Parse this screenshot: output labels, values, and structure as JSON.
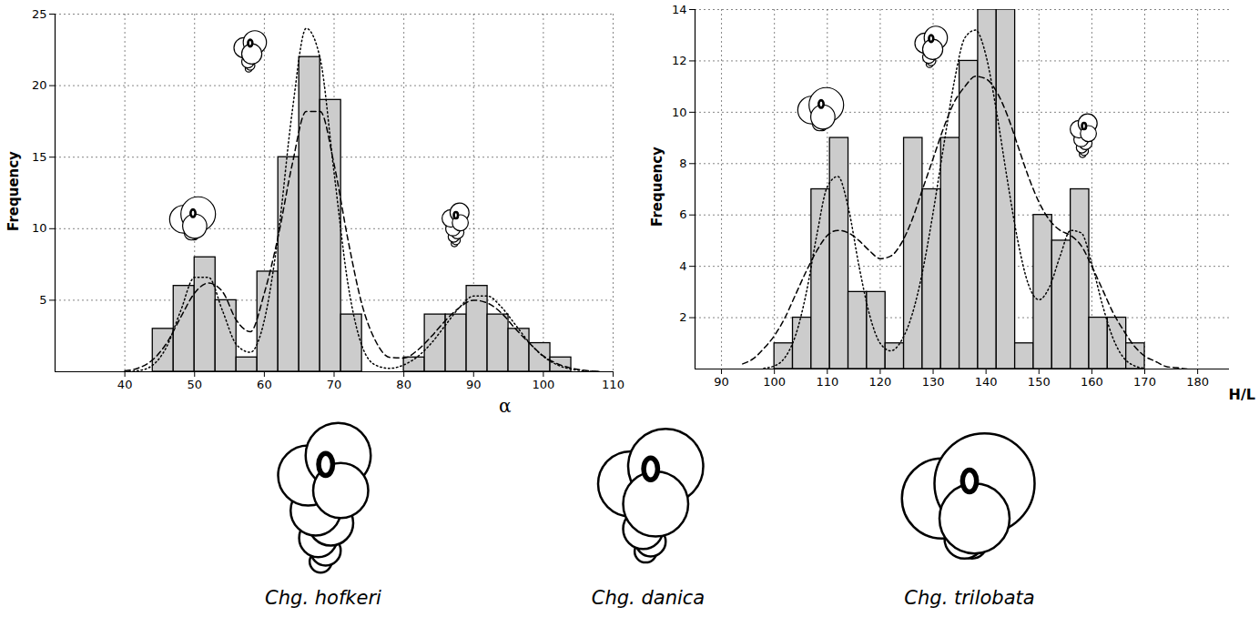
{
  "chart_data": [
    {
      "type": "histogram",
      "x_label": "α",
      "y_label": "Frequency",
      "bins": [
        44,
        47,
        50,
        53,
        56,
        59,
        62,
        65,
        68,
        71,
        74,
        77,
        80,
        83,
        86,
        89,
        92,
        95,
        98,
        101,
        104
      ],
      "values": [
        3,
        6,
        8,
        5,
        1,
        7,
        15,
        22,
        19,
        4,
        0,
        0,
        1,
        4,
        4,
        6,
        4,
        3,
        2,
        1
      ],
      "color": "#cccccc",
      "xlim": [
        30,
        110
      ],
      "xticks": [
        40,
        50,
        60,
        70,
        80,
        90,
        100,
        110
      ],
      "ylim": [
        0,
        25
      ],
      "yticks": [
        5,
        10,
        15,
        20,
        25
      ],
      "grid": true,
      "curves": [
        {
          "line_style": "dotted",
          "color": "#000000",
          "x": [
            40,
            42,
            44,
            46,
            48,
            50,
            52,
            54,
            56,
            58,
            60,
            62,
            64,
            66,
            68,
            70,
            72,
            74,
            76,
            78,
            80,
            82,
            84,
            86,
            88,
            90,
            92,
            94,
            96,
            98,
            100,
            102,
            104,
            106,
            108
          ],
          "values": [
            0.01,
            0.08,
            0.46,
            1.75,
            4.25,
            6.6,
            6.6,
            4.27,
            1.9,
            1.36,
            3.6,
            9.6,
            18.2,
            24.0,
            21.9,
            13.9,
            6.1,
            1.8,
            0.45,
            0.24,
            0.48,
            1.07,
            2.03,
            3.28,
            4.51,
            5.29,
            5.29,
            4.51,
            3.28,
            2.03,
            1.07,
            0.48,
            0.18,
            0.06,
            0.01
          ]
        },
        {
          "line_style": "dashed",
          "color": "#000000",
          "x": [
            40,
            42,
            44,
            46,
            48,
            50,
            52,
            54,
            56,
            58,
            60,
            62,
            64,
            66,
            68,
            70,
            72,
            74,
            76,
            78,
            80,
            82,
            84,
            86,
            88,
            90,
            92,
            94,
            96,
            98,
            100,
            102,
            104,
            106,
            108
          ],
          "values": [
            0.07,
            0.27,
            0.84,
            2.0,
            3.8,
            5.5,
            6.2,
            5.6,
            3.6,
            2.8,
            5.5,
            9.5,
            14.5,
            18.2,
            18.2,
            14.5,
            9.2,
            4.7,
            2.1,
            1.0,
            0.96,
            1.52,
            2.5,
            3.6,
            4.5,
            5.0,
            4.8,
            4.1,
            3.0,
            2.0,
            1.1,
            0.56,
            0.25,
            0.09,
            0.03
          ]
        }
      ]
    },
    {
      "type": "histogram",
      "x_label": "H/L",
      "y_label": "Frequency",
      "bins": [
        100,
        103.5,
        107,
        110.5,
        114,
        117.5,
        121,
        124.5,
        128,
        131.5,
        135,
        138.5,
        142,
        145.5,
        149,
        152.5,
        156,
        159.5,
        163,
        166.5,
        170
      ],
      "values": [
        1,
        2,
        7,
        9,
        3,
        3,
        1,
        9,
        7,
        9,
        12,
        14,
        14,
        1,
        6,
        5,
        7,
        2,
        2,
        1
      ],
      "color": "#cccccc",
      "xlim": [
        85,
        186
      ],
      "xticks": [
        90,
        100,
        110,
        120,
        130,
        140,
        150,
        160,
        170,
        180
      ],
      "ylim": [
        0,
        14
      ],
      "yticks": [
        2,
        4,
        6,
        8,
        10,
        12,
        14
      ],
      "grid": true,
      "curves": [
        {
          "line_style": "dotted",
          "color": "#000000",
          "x": [
            98,
            100,
            102,
            104,
            106,
            108,
            110,
            112,
            114,
            116,
            118,
            120,
            122,
            124,
            126,
            128,
            130,
            132,
            134,
            136,
            138,
            140,
            142,
            144,
            146,
            148,
            150,
            152,
            154,
            156,
            158,
            160,
            162,
            164,
            166,
            168,
            170
          ],
          "values": [
            0.03,
            0.12,
            0.45,
            1.31,
            2.94,
            5.2,
            7.1,
            7.5,
            6.25,
            4.0,
            2.1,
            1.0,
            0.71,
            1.1,
            2.1,
            3.8,
            6.1,
            8.7,
            11.2,
            12.9,
            13.2,
            12.2,
            10.0,
            7.4,
            5.0,
            3.3,
            2.7,
            3.2,
            4.4,
            5.4,
            5.3,
            4.1,
            2.5,
            1.2,
            0.44,
            0.13,
            0.03
          ]
        },
        {
          "line_style": "dashed",
          "color": "#000000",
          "x": [
            94,
            96,
            98,
            100,
            102,
            104,
            106,
            108,
            110,
            112,
            114,
            116,
            118,
            120,
            122,
            124,
            126,
            128,
            130,
            132,
            134,
            136,
            138,
            140,
            142,
            144,
            146,
            148,
            150,
            152,
            154,
            156,
            158,
            160,
            162,
            164,
            166,
            168,
            170,
            172,
            174,
            176,
            178
          ],
          "values": [
            0.2,
            0.4,
            0.8,
            1.3,
            2.0,
            2.9,
            3.8,
            4.6,
            5.2,
            5.4,
            5.3,
            5.0,
            4.6,
            4.3,
            4.4,
            4.9,
            5.8,
            7.0,
            8.2,
            9.4,
            10.4,
            11.0,
            11.4,
            11.3,
            10.8,
            9.9,
            8.7,
            7.5,
            6.5,
            5.8,
            5.4,
            5.2,
            4.8,
            4.0,
            3.1,
            2.2,
            1.5,
            0.9,
            0.5,
            0.3,
            0.1,
            0.05,
            0.0
          ]
        }
      ]
    }
  ],
  "illustrations": {
    "labels": [
      "Chg. hofkeri",
      "Chg. danica",
      "Chg. trilobata"
    ]
  }
}
